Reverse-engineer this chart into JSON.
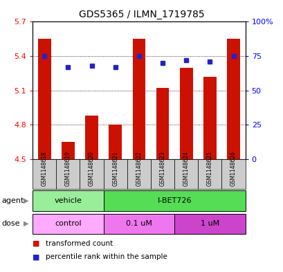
{
  "title": "GDS5365 / ILMN_1719785",
  "samples": [
    "GSM1148618",
    "GSM1148619",
    "GSM1148620",
    "GSM1148621",
    "GSM1148622",
    "GSM1148623",
    "GSM1148624",
    "GSM1148625",
    "GSM1148626"
  ],
  "bar_values": [
    5.55,
    4.65,
    4.88,
    4.8,
    5.55,
    5.12,
    5.3,
    5.22,
    5.55
  ],
  "percentile_values": [
    75,
    67,
    68,
    67,
    75,
    70,
    72,
    71,
    75
  ],
  "bar_color": "#cc1100",
  "dot_color": "#2222cc",
  "ylim_left": [
    4.5,
    5.7
  ],
  "ylim_right": [
    0,
    100
  ],
  "yticks_left": [
    4.5,
    4.8,
    5.1,
    5.4,
    5.7
  ],
  "yticks_right": [
    0,
    25,
    50,
    75,
    100
  ],
  "ytick_labels_right": [
    "0",
    "25",
    "50",
    "75",
    "100%"
  ],
  "agent_labels": [
    {
      "label": "vehicle",
      "span": [
        0,
        3
      ],
      "color": "#99ee99"
    },
    {
      "label": "I-BET726",
      "span": [
        3,
        9
      ],
      "color": "#55dd55"
    }
  ],
  "dose_labels": [
    {
      "label": "control",
      "span": [
        0,
        3
      ],
      "color": "#ffaaff"
    },
    {
      "label": "0.1 uM",
      "span": [
        3,
        6
      ],
      "color": "#ee77ee"
    },
    {
      "label": "1 uM",
      "span": [
        6,
        9
      ],
      "color": "#cc44cc"
    }
  ],
  "legend_bar_label": "transformed count",
  "legend_dot_label": "percentile rank within the sample",
  "plot_bg_color": "#ffffff",
  "tick_bg_color": "#cccccc",
  "grid_color": "#000000",
  "bar_width": 0.55
}
